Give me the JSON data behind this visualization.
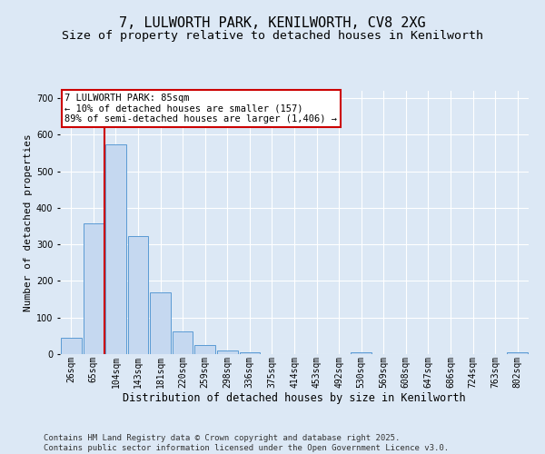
{
  "title": "7, LULWORTH PARK, KENILWORTH, CV8 2XG",
  "subtitle": "Size of property relative to detached houses in Kenilworth",
  "xlabel": "Distribution of detached houses by size in Kenilworth",
  "ylabel": "Number of detached properties",
  "categories": [
    "26sqm",
    "65sqm",
    "104sqm",
    "143sqm",
    "181sqm",
    "220sqm",
    "259sqm",
    "298sqm",
    "336sqm",
    "375sqm",
    "414sqm",
    "453sqm",
    "492sqm",
    "530sqm",
    "569sqm",
    "608sqm",
    "647sqm",
    "686sqm",
    "724sqm",
    "763sqm",
    "802sqm"
  ],
  "values": [
    45,
    357,
    573,
    323,
    170,
    62,
    25,
    11,
    5,
    0,
    0,
    0,
    0,
    5,
    0,
    0,
    0,
    0,
    0,
    0,
    4
  ],
  "bar_color": "#c5d8f0",
  "bar_edge_color": "#5a9ad4",
  "vline_x": 1.5,
  "vline_color": "#cc0000",
  "annotation_text": "7 LULWORTH PARK: 85sqm\n← 10% of detached houses are smaller (157)\n89% of semi-detached houses are larger (1,406) →",
  "annotation_box_color": "#cc0000",
  "ylim": [
    0,
    720
  ],
  "yticks": [
    0,
    100,
    200,
    300,
    400,
    500,
    600,
    700
  ],
  "background_color": "#dce8f5",
  "fig_background_color": "#dce8f5",
  "grid_color": "#ffffff",
  "footer": "Contains HM Land Registry data © Crown copyright and database right 2025.\nContains public sector information licensed under the Open Government Licence v3.0.",
  "title_fontsize": 11,
  "subtitle_fontsize": 9.5,
  "xlabel_fontsize": 8.5,
  "ylabel_fontsize": 8,
  "tick_fontsize": 7,
  "annotation_fontsize": 7.5,
  "footer_fontsize": 6.5
}
